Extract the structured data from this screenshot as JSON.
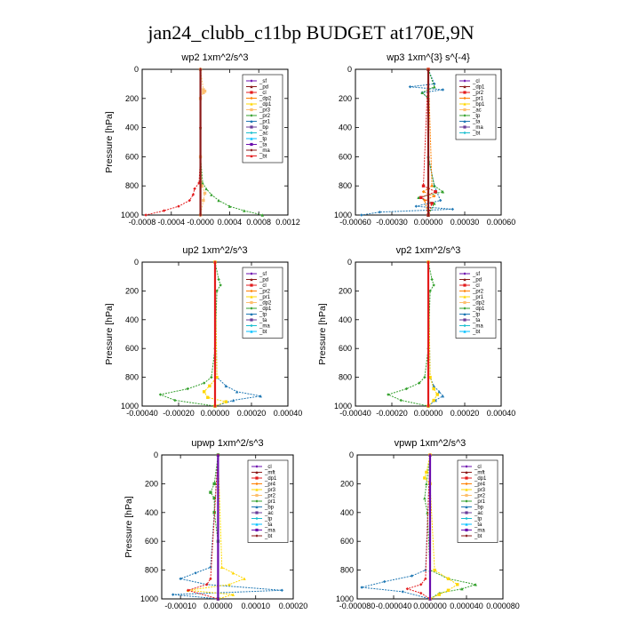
{
  "title": "jan24_clubb_c11bp  BUDGET at170E,9N",
  "colors": {
    "legend_palette": [
      "#6a0dad",
      "#8b1a1a",
      "#e31a1c",
      "#ff7f00",
      "#ffd700",
      "#fdbf6f",
      "#33a02c",
      "#1f78b4",
      "#6a3d9a",
      "#17becf",
      "#00bfff"
    ]
  },
  "chart_data": [
    {
      "type": "line",
      "title": "wp2   1xm^2/s^3",
      "ylabel": "Pressure  [hPa]",
      "xlim": [
        -0.0008,
        0.0012
      ],
      "ylim": [
        1000,
        0
      ],
      "xticks": [
        -0.0008,
        -0.0004,
        0,
        0.0004,
        0.0008,
        0.0012
      ],
      "xtick_labels": [
        "-0.0008",
        "-0.0004",
        "-0.0000",
        "0.0004",
        "0.0008",
        "0.0012"
      ],
      "yticks": [
        0,
        200,
        400,
        600,
        800,
        1000
      ],
      "ytick_labels": [
        "0",
        "200",
        "400",
        "600",
        "800",
        "1000"
      ],
      "legend": [
        "_sf",
        "_pd",
        "_cl",
        "_dp2",
        "_dp1",
        "_pr3",
        "_pr2",
        "_pr1",
        "_bp",
        "_ac",
        "_tp",
        "_ta",
        "_ma",
        "_bt"
      ],
      "series": [
        {
          "name": "_cl",
          "color": "#e31a1c",
          "y": [
            0,
            200,
            400,
            600,
            780,
            820,
            860,
            900,
            940,
            970,
            1000
          ],
          "x": [
            0,
            0,
            0,
            0,
            -2e-05,
            -8e-05,
            -0.0001,
            -0.00015,
            -0.0003,
            -0.0005,
            -0.00075
          ]
        },
        {
          "name": "_ac",
          "color": "#33a02c",
          "y": [
            0,
            200,
            400,
            600,
            780,
            820,
            860,
            900,
            940,
            970,
            1000
          ],
          "x": [
            0,
            0,
            0,
            0,
            3e-05,
            8e-05,
            0.00015,
            0.00025,
            0.0004,
            0.0006,
            0.00085
          ]
        },
        {
          "name": "_pr1",
          "color": "#fdbf6f",
          "y": [
            0,
            140,
            150,
            160,
            200,
            600,
            800,
            850,
            900,
            1000
          ],
          "x": [
            0,
            4e-05,
            6e-05,
            4e-05,
            0,
            0,
            2e-05,
            6e-05,
            4e-05,
            0
          ]
        },
        {
          "name": "_bt",
          "color": "#8b1a1a",
          "y": [
            0,
            1000
          ],
          "x": [
            0,
            0
          ]
        }
      ]
    },
    {
      "type": "line",
      "title": "wp3   1xm^{3} s^{-4}",
      "ylabel": "",
      "xlim": [
        -0.0006,
        0.0006
      ],
      "ylim": [
        1000,
        0
      ],
      "xticks": [
        -0.0006,
        -0.0003,
        0,
        0.0003,
        0.0006
      ],
      "xtick_labels": [
        "-0.00060",
        "-0.00030",
        "0.00000",
        "0.00030",
        "0.00060"
      ],
      "yticks": [
        0,
        200,
        400,
        600,
        800,
        1000
      ],
      "ytick_labels": [
        "0",
        "200",
        "400",
        "600",
        "800",
        "1000"
      ],
      "legend": [
        "_cl",
        "_dp1",
        "_pr2",
        "_pr1",
        "_bp1",
        "_ac",
        "_tp",
        "_ta",
        "_ma",
        "_bt"
      ],
      "series": [
        {
          "name": "_tp",
          "color": "#1f78b4",
          "y": [
            0,
            100,
            120,
            140,
            160,
            200,
            600,
            800,
            900,
            940,
            960,
            980,
            1000
          ],
          "x": [
            0,
            5e-05,
            -0.00015,
            0.00012,
            -5e-05,
            0,
            0,
            5e-05,
            0.0001,
            -0.0001,
            0.0002,
            -0.0004,
            -0.00055
          ]
        },
        {
          "name": "_ac",
          "color": "#33a02c",
          "y": [
            0,
            120,
            160,
            200,
            600,
            800,
            840,
            880,
            920,
            1000
          ],
          "x": [
            0,
            5e-05,
            -5e-05,
            0,
            0,
            5e-05,
            0.00012,
            -8e-05,
            5e-05,
            0
          ]
        },
        {
          "name": "_dp1",
          "color": "#e31a1c",
          "y": [
            0,
            800,
            840,
            880,
            920,
            1000
          ],
          "x": [
            0,
            -4e-05,
            6e-05,
            -6e-05,
            3e-05,
            0
          ]
        },
        {
          "name": "_pr1",
          "color": "#ff7f00",
          "y": [
            0,
            800,
            840,
            870,
            900,
            1000
          ],
          "x": [
            0,
            3e-05,
            -4e-05,
            5e-05,
            -3e-05,
            0
          ]
        },
        {
          "name": "_bt",
          "color": "#8b1a1a",
          "y": [
            0,
            1000
          ],
          "x": [
            0,
            0
          ]
        }
      ]
    },
    {
      "type": "line",
      "title": "up2   1xm^2/s^3",
      "ylabel": "Pressure  [hPa]",
      "xlim": [
        -0.0004,
        0.0004
      ],
      "ylim": [
        1000,
        0
      ],
      "xticks": [
        -0.0004,
        -0.0002,
        0,
        0.0002,
        0.0004
      ],
      "xtick_labels": [
        "-0.00040",
        "-0.00020",
        "0.00000",
        "0.00020",
        "0.00040"
      ],
      "yticks": [
        0,
        200,
        400,
        600,
        800,
        1000
      ],
      "ytick_labels": [
        "0",
        "200",
        "400",
        "600",
        "800",
        "1000"
      ],
      "legend": [
        "_sf",
        "_pd",
        "_cl",
        "_pr2",
        "_pr1",
        "_dp2",
        "_dp1",
        "_tp",
        "_ta",
        "_ma",
        "_bt"
      ],
      "series": [
        {
          "name": "_dp1",
          "color": "#33a02c",
          "y": [
            0,
            120,
            160,
            200,
            600,
            800,
            840,
            880,
            920,
            960,
            1000
          ],
          "x": [
            0,
            2e-05,
            3e-05,
            1e-05,
            0,
            -2e-05,
            -6e-05,
            -0.00015,
            -0.0003,
            -0.00022,
            0
          ]
        },
        {
          "name": "_tp",
          "color": "#1f78b4",
          "y": [
            0,
            800,
            860,
            900,
            930,
            960,
            1000
          ],
          "x": [
            0,
            1e-05,
            6e-05,
            0.00012,
            0.00025,
            0.0001,
            0
          ]
        },
        {
          "name": "_pr1",
          "color": "#ffd700",
          "y": [
            0,
            800,
            860,
            900,
            940,
            970,
            1000
          ],
          "x": [
            0,
            1e-05,
            -3e-05,
            -6e-05,
            -4e-05,
            6e-05,
            0
          ]
        },
        {
          "name": "_bt",
          "color": "#e31a1c",
          "y": [
            0,
            1000
          ],
          "x": [
            0,
            0
          ]
        }
      ]
    },
    {
      "type": "line",
      "title": "vp2   1xm^2/s^3",
      "ylabel": "Pressure  [hPa]",
      "xlim": [
        -0.0004,
        0.0004
      ],
      "ylim": [
        1000,
        0
      ],
      "xticks": [
        -0.0004,
        -0.0002,
        0,
        0.0002,
        0.0004
      ],
      "xtick_labels": [
        "-0.00040",
        "-0.00020",
        "0.00000",
        "0.00020",
        "0.00040"
      ],
      "yticks": [
        0,
        200,
        400,
        600,
        800,
        1000
      ],
      "ytick_labels": [
        "0",
        "200",
        "400",
        "600",
        "800",
        "1000"
      ],
      "legend": [
        "_sf",
        "_pd",
        "_cl",
        "_pr2",
        "_pr1",
        "_dp2",
        "_dp1",
        "_tp",
        "_ta",
        "_ma",
        "_bt"
      ],
      "series": [
        {
          "name": "_dp1",
          "color": "#33a02c",
          "y": [
            0,
            120,
            160,
            200,
            600,
            800,
            840,
            880,
            920,
            960,
            1000
          ],
          "x": [
            0,
            2e-05,
            3e-05,
            1e-05,
            0,
            -2e-05,
            -5e-05,
            -0.00012,
            -0.00022,
            -0.00015,
            0
          ]
        },
        {
          "name": "_tp",
          "color": "#1f78b4",
          "y": [
            0,
            800,
            860,
            900,
            930,
            960,
            1000
          ],
          "x": [
            0,
            1e-05,
            3e-05,
            6e-05,
            8e-05,
            4e-05,
            0
          ]
        },
        {
          "name": "_pr1",
          "color": "#ffd700",
          "y": [
            0,
            800,
            880,
            920,
            960,
            1000
          ],
          "x": [
            0,
            1e-05,
            3e-05,
            5e-05,
            3e-05,
            0
          ]
        },
        {
          "name": "_bt",
          "color": "#e31a1c",
          "y": [
            0,
            1000
          ],
          "x": [
            0,
            0
          ]
        }
      ]
    },
    {
      "type": "line",
      "title": "upwp   1xm^2/s^3",
      "ylabel": "Pressure  [hPa]",
      "xlim": [
        -0.00015,
        0.0002
      ],
      "ylim": [
        1000,
        0
      ],
      "xticks": [
        -0.0001,
        0,
        0.0001,
        0.0002
      ],
      "xtick_labels": [
        "-0.00010",
        "0.00000",
        "0.00010",
        "0.00020"
      ],
      "yticks": [
        0,
        200,
        400,
        600,
        800,
        1000
      ],
      "ytick_labels": [
        "0",
        "200",
        "400",
        "600",
        "800",
        "1000"
      ],
      "legend": [
        "_cl",
        "_mft",
        "_dp1",
        "_pr4",
        "_pr3",
        "_pr2",
        "_pr1",
        "_bp",
        "_ac",
        "_tp",
        "_ta",
        "_ma",
        "_bt"
      ],
      "series": [
        {
          "name": "_tp",
          "color": "#1f78b4",
          "y": [
            0,
            780,
            820,
            860,
            900,
            940,
            970,
            1000
          ],
          "x": [
            0,
            -2e-05,
            -6e-05,
            -0.0001,
            -3e-05,
            0.00017,
            -0.00012,
            0
          ]
        },
        {
          "name": "_pr1",
          "color": "#ffd700",
          "y": [
            0,
            780,
            820,
            860,
            900,
            940,
            970,
            1000
          ],
          "x": [
            0,
            1e-05,
            4e-05,
            7e-05,
            3e-05,
            -8e-05,
            4e-05,
            0
          ]
        },
        {
          "name": "_ac",
          "color": "#33a02c",
          "y": [
            0,
            200,
            260,
            300,
            400,
            600,
            1000
          ],
          "x": [
            0,
            -1e-05,
            -2e-05,
            -1e-05,
            -1e-05,
            0,
            0
          ]
        },
        {
          "name": "_dp1",
          "color": "#e31a1c",
          "y": [
            0,
            860,
            900,
            940,
            1000
          ],
          "x": [
            0,
            -2e-05,
            -3e-05,
            -8e-05,
            0
          ]
        },
        {
          "name": "_bt",
          "color": "#6a0dad",
          "y": [
            0,
            1000
          ],
          "x": [
            0,
            0
          ]
        }
      ]
    },
    {
      "type": "line",
      "title": "vpwp   1xm^2/s^3",
      "ylabel": "",
      "xlim": [
        -8e-05,
        8e-05
      ],
      "ylim": [
        1000,
        0
      ],
      "xticks": [
        -8e-05,
        -4e-05,
        0,
        4e-05,
        8e-05
      ],
      "xtick_labels": [
        "-0.000080",
        "-0.000040",
        "0.000000",
        "0.000040",
        "0.000080"
      ],
      "yticks": [
        0,
        200,
        400,
        600,
        800,
        1000
      ],
      "ytick_labels": [
        "0",
        "200",
        "400",
        "600",
        "800",
        "1000"
      ],
      "legend": [
        "_cl",
        "_mft",
        "_dp1",
        "_pr4",
        "_pr3",
        "_pr2",
        "_pr1",
        "_bp",
        "_ac",
        "_tp",
        "_ta",
        "_ma",
        "_bt"
      ],
      "series": [
        {
          "name": "_tp",
          "color": "#1f78b4",
          "y": [
            0,
            800,
            840,
            880,
            920,
            950,
            1000
          ],
          "x": [
            0,
            -5e-06,
            -2e-05,
            -5e-05,
            -7.5e-05,
            -3e-05,
            0
          ]
        },
        {
          "name": "_ac",
          "color": "#33a02c",
          "y": [
            0,
            200,
            300,
            400,
            800,
            860,
            900,
            930,
            960,
            1000
          ],
          "x": [
            0,
            -4e-06,
            -6e-06,
            -3e-06,
            0,
            2e-05,
            5e-05,
            3.5e-05,
            1e-05,
            0
          ]
        },
        {
          "name": "_pr1",
          "color": "#ffd700",
          "y": [
            0,
            120,
            160,
            200,
            800,
            860,
            900,
            940,
            970,
            1000
          ],
          "x": [
            0,
            -4e-06,
            -6e-06,
            0,
            5e-06,
            2e-05,
            3e-05,
            2e-05,
            1e-05,
            0
          ]
        },
        {
          "name": "_dp1",
          "color": "#e31a1c",
          "y": [
            0,
            860,
            900,
            930,
            960,
            1000
          ],
          "x": [
            0,
            -5e-06,
            -1e-05,
            -2.5e-05,
            -1e-05,
            0
          ]
        },
        {
          "name": "_bt",
          "color": "#6a0dad",
          "y": [
            0,
            1000
          ],
          "x": [
            0,
            0
          ]
        }
      ]
    }
  ]
}
